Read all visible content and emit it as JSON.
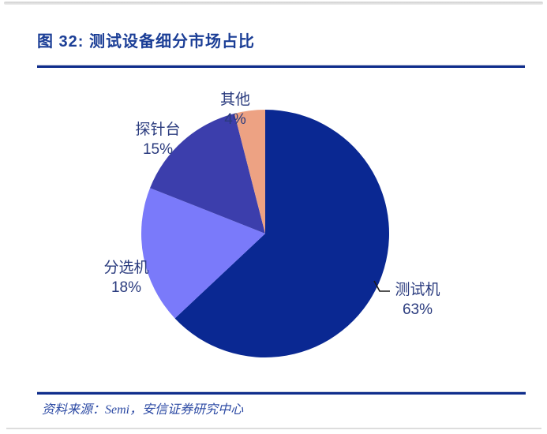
{
  "page": {
    "title": "图 32: 测试设备细分市场占比",
    "source_label": "资料来源：Semi，安信证券研究中心"
  },
  "colors": {
    "title_text": "#1B3E96",
    "rule": "#0F2D8C",
    "label_text": "#2A3B7E",
    "source_text": "#2C4AA4",
    "leader_line": "#1A1A1A",
    "background": "#FFFFFF"
  },
  "chart_data": {
    "type": "pie",
    "title": "图 32: 测试设备细分市场占比",
    "start_angle_deg": 0,
    "direction": "clockwise",
    "legend_position": "none",
    "slices": [
      {
        "label": "测试机",
        "value": 63,
        "pct_label": "63%",
        "color": "#0A2892"
      },
      {
        "label": "分选机",
        "value": 18,
        "pct_label": "18%",
        "color": "#7A7AFA"
      },
      {
        "label": "探针台",
        "value": 15,
        "pct_label": "15%",
        "color": "#3C3EAC"
      },
      {
        "label": "其他",
        "value": 4,
        "pct_label": "4%",
        "color": "#EDA283"
      }
    ]
  }
}
